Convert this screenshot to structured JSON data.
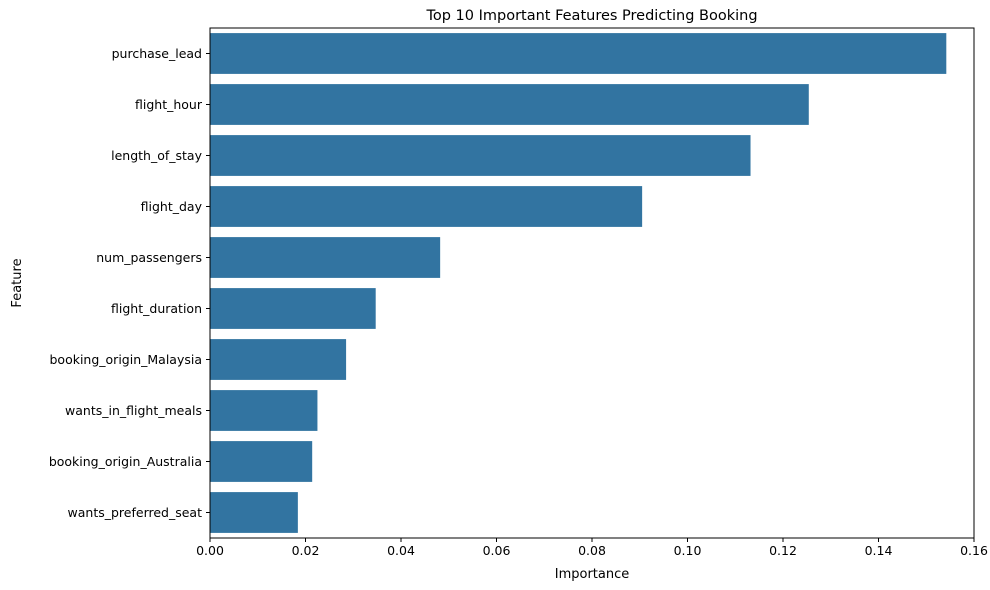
{
  "chart_data": {
    "type": "bar",
    "orientation": "horizontal",
    "title": "Top 10 Important Features Predicting Booking",
    "xlabel": "Importance",
    "ylabel": "Feature",
    "categories": [
      "purchase_lead",
      "flight_hour",
      "length_of_stay",
      "flight_day",
      "num_passengers",
      "flight_duration",
      "booking_origin_Malaysia",
      "wants_in_flight_meals",
      "booking_origin_Australia",
      "wants_preferred_seat"
    ],
    "values": [
      0.1542,
      0.1254,
      0.1132,
      0.0905,
      0.0482,
      0.0347,
      0.0285,
      0.0225,
      0.0214,
      0.0184
    ],
    "xlim": [
      0,
      0.16
    ],
    "xticks": [
      "0.00",
      "0.02",
      "0.04",
      "0.06",
      "0.08",
      "0.10",
      "0.12",
      "0.14",
      "0.16"
    ],
    "grid": false,
    "bar_color": "#3274a1"
  }
}
